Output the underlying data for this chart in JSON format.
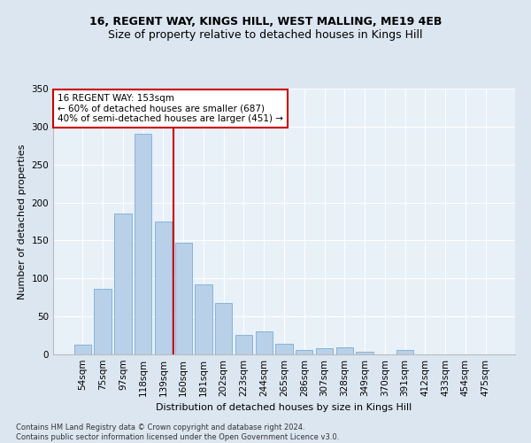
{
  "title": "16, REGENT WAY, KINGS HILL, WEST MALLING, ME19 4EB",
  "subtitle": "Size of property relative to detached houses in Kings Hill",
  "xlabel": "Distribution of detached houses by size in Kings Hill",
  "ylabel": "Number of detached properties",
  "categories": [
    "54sqm",
    "75sqm",
    "97sqm",
    "118sqm",
    "139sqm",
    "160sqm",
    "181sqm",
    "202sqm",
    "223sqm",
    "244sqm",
    "265sqm",
    "286sqm",
    "307sqm",
    "328sqm",
    "349sqm",
    "370sqm",
    "391sqm",
    "412sqm",
    "433sqm",
    "454sqm",
    "475sqm"
  ],
  "values": [
    13,
    86,
    185,
    290,
    175,
    147,
    92,
    68,
    26,
    30,
    14,
    6,
    8,
    9,
    3,
    0,
    6,
    0,
    0,
    0,
    0
  ],
  "bar_color": "#b8d0e8",
  "bar_edgecolor": "#7aadd4",
  "vline_x": 4.5,
  "vline_color": "#cc0000",
  "annotation_text": "16 REGENT WAY: 153sqm\n← 60% of detached houses are smaller (687)\n40% of semi-detached houses are larger (451) →",
  "annotation_box_color": "#ffffff",
  "annotation_box_edgecolor": "#cc0000",
  "ylim": [
    0,
    350
  ],
  "yticks": [
    0,
    50,
    100,
    150,
    200,
    250,
    300,
    350
  ],
  "footer_line1": "Contains HM Land Registry data © Crown copyright and database right 2024.",
  "footer_line2": "Contains public sector information licensed under the Open Government Licence v3.0.",
  "background_color": "#dce6f0",
  "plot_bg_color": "#e8f0f8",
  "title_fontsize": 9,
  "subtitle_fontsize": 9,
  "axis_label_fontsize": 8,
  "tick_fontsize": 7.5,
  "annotation_fontsize": 7.5,
  "footer_fontsize": 6
}
